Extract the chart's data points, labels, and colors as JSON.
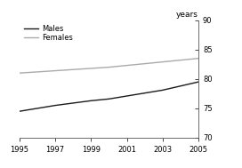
{
  "x": [
    1995,
    1996,
    1997,
    1998,
    1999,
    2000,
    2001,
    2002,
    2003,
    2004,
    2005
  ],
  "males": [
    74.5,
    75.0,
    75.5,
    75.9,
    76.3,
    76.6,
    77.1,
    77.6,
    78.1,
    78.8,
    79.5
  ],
  "females": [
    81.0,
    81.2,
    81.4,
    81.6,
    81.8,
    82.0,
    82.3,
    82.6,
    82.9,
    83.2,
    83.5
  ],
  "males_color": "#1a1a1a",
  "females_color": "#aaaaaa",
  "ylim": [
    70,
    90
  ],
  "xlim": [
    1995,
    2005
  ],
  "yticks": [
    70,
    75,
    80,
    85,
    90
  ],
  "xticks": [
    1995,
    1997,
    1999,
    2001,
    2003,
    2005
  ],
  "ylabel": "years",
  "legend_males": "Males",
  "legend_females": "Females",
  "line_width": 1.0,
  "background_color": "#ffffff"
}
